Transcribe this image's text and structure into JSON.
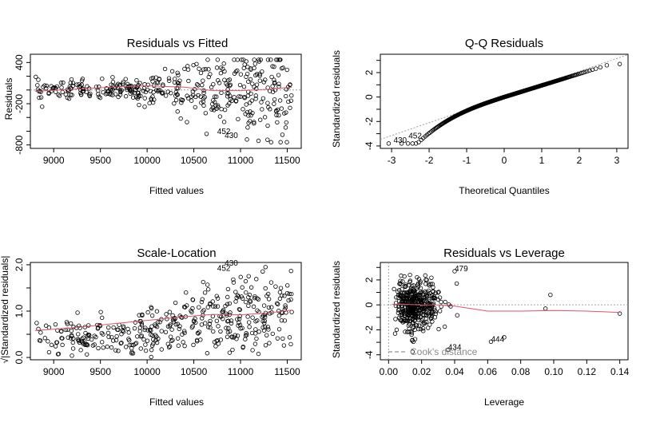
{
  "colors": {
    "points": "#000000",
    "smooth": "#df536b",
    "reference": "#9e9e9e",
    "cooks": "#777777"
  },
  "chart_data": [
    {
      "id": "rvf",
      "type": "scatter",
      "title": "Residuals vs Fitted",
      "xlabel": "Fitted values",
      "ylabel": "Residuals",
      "xlim": [
        8750,
        11650
      ],
      "ylim": [
        -850,
        520
      ],
      "xticks": [
        9000,
        9500,
        10000,
        10500,
        11000,
        11500
      ],
      "yticks": [
        -800,
        -200,
        400
      ],
      "yticks_minor": [
        -600,
        -400,
        0,
        200
      ],
      "grid": false,
      "annotations": [
        {
          "label": "452",
          "x": 10750,
          "y": -640
        },
        {
          "label": "430",
          "x": 10830,
          "y": -700
        }
      ],
      "smooth": {
        "x": [
          8800,
          9200,
          9600,
          10000,
          10400,
          10700,
          11000,
          11300,
          11550
        ],
        "y": [
          -20,
          10,
          40,
          60,
          40,
          -10,
          -10,
          10,
          40
        ]
      }
    },
    {
      "id": "qq",
      "type": "scatter",
      "title": "Q-Q Residuals",
      "xlabel": "Theoretical Quantiles",
      "ylabel": "Standardized residuals",
      "xlim": [
        -3.3,
        3.3
      ],
      "ylim": [
        -4.2,
        3.5
      ],
      "xticks": [
        -3,
        -2,
        -1,
        0,
        1,
        2,
        3
      ],
      "yticks": [
        -4,
        -2,
        0,
        2
      ],
      "yticks_minor": [
        -3,
        -1,
        1,
        3
      ],
      "grid": false,
      "annotations": [
        {
          "label": "430",
          "x": -2.95,
          "y": -3.75
        },
        {
          "label": "452",
          "x": -2.55,
          "y": -3.4
        }
      ],
      "reference_line": {
        "intercept": 0,
        "slope": 1.05
      }
    },
    {
      "id": "sl",
      "type": "scatter",
      "title": "Scale-Location",
      "xlabel": "Fitted values",
      "ylabel": "√|Standardized residuals|",
      "xlim": [
        8750,
        11650
      ],
      "ylim": [
        -0.05,
        2.05
      ],
      "xticks": [
        9000,
        9500,
        10000,
        10500,
        11000,
        11500
      ],
      "yticks": [
        0.0,
        1.0,
        2.0
      ],
      "yticks_minor": [
        0.5,
        1.5
      ],
      "ytick_labels": [
        "0.0",
        "1.0",
        "2.0"
      ],
      "grid": false,
      "annotations": [
        {
          "label": "430",
          "x": 10830,
          "y": 1.98
        },
        {
          "label": "452",
          "x": 10750,
          "y": 1.87
        }
      ],
      "smooth": {
        "x": [
          8800,
          9200,
          9600,
          10000,
          10400,
          10700,
          11000,
          11300,
          11550
        ],
        "y": [
          0.58,
          0.64,
          0.72,
          0.8,
          0.88,
          0.93,
          0.92,
          0.96,
          1.02
        ]
      }
    },
    {
      "id": "rvl",
      "type": "scatter",
      "title": "Residuals vs Leverage",
      "xlabel": "Leverage",
      "ylabel": "Standardized residuals",
      "xlim": [
        -0.005,
        0.145
      ],
      "ylim": [
        -4.4,
        3.4
      ],
      "xticks": [
        0.0,
        0.02,
        0.04,
        0.06,
        0.08,
        0.1,
        0.12,
        0.14
      ],
      "xtick_labels": [
        "0.00",
        "0.02",
        "0.04",
        "0.06",
        "0.08",
        "0.10",
        "0.12",
        "0.14"
      ],
      "yticks": [
        -4,
        -2,
        0,
        2
      ],
      "yticks_minor": [
        -3,
        -1,
        1,
        3
      ],
      "grid": false,
      "annotations": [
        {
          "label": "479",
          "x": 0.04,
          "y": 2.7
        },
        {
          "label": "444",
          "x": 0.062,
          "y": -2.95
        },
        {
          "label": "434",
          "x": 0.036,
          "y": -3.6
        }
      ],
      "legend": {
        "label": "Cook's distance",
        "position": "bottom-left"
      },
      "smooth": {
        "x": [
          0.002,
          0.01,
          0.02,
          0.03,
          0.04,
          0.05,
          0.06,
          0.08,
          0.1,
          0.12,
          0.14
        ],
        "y": [
          0.05,
          0.05,
          0.0,
          0.0,
          -0.1,
          -0.3,
          -0.5,
          -0.5,
          -0.45,
          -0.5,
          -0.6
        ]
      }
    }
  ]
}
